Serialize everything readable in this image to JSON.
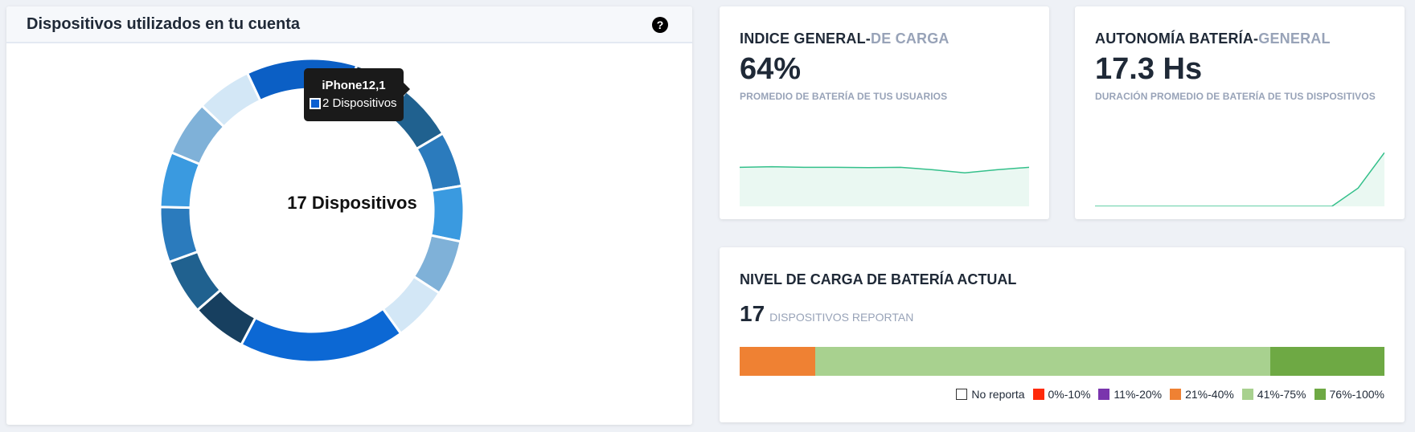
{
  "devices_panel": {
    "title": "Dispositivos utilizados en tu cuenta",
    "help_icon": "?",
    "center_label": "17 Dispositivos",
    "tooltip": {
      "title": "iPhone12,1",
      "value": "2 Dispositivos",
      "swatch_color": "#0b5fd1"
    }
  },
  "chart_data": [
    {
      "type": "pie",
      "title": "",
      "total": 17,
      "slices": [
        {
          "value": 2,
          "color": "#0b5fc5"
        },
        {
          "value": 1,
          "color": "#173f5f"
        },
        {
          "value": 1,
          "color": "#20618f"
        },
        {
          "value": 1,
          "color": "#2b7bbd"
        },
        {
          "value": 1,
          "color": "#3a9ae0"
        },
        {
          "value": 1,
          "color": "#7fb1d8"
        },
        {
          "value": 1,
          "color": "#d3e7f6"
        },
        {
          "value": 3,
          "color": "#0c68d4"
        },
        {
          "value": 1,
          "color": "#173f5f"
        },
        {
          "value": 1,
          "color": "#20618f"
        },
        {
          "value": 1,
          "color": "#2b7bbd"
        },
        {
          "value": 1,
          "color": "#3a9ae0"
        },
        {
          "value": 1,
          "color": "#7fb1d8"
        },
        {
          "value": 1,
          "color": "#d3e7f6"
        }
      ]
    },
    {
      "type": "area",
      "name": "indice-general",
      "values": [
        0.64,
        0.65,
        0.64,
        0.64,
        0.635,
        0.64,
        0.6,
        0.55,
        0.6,
        0.64
      ],
      "ylim": [
        0,
        1
      ],
      "line_color": "#34c08b",
      "fill_color": "#eaf8f2"
    },
    {
      "type": "area",
      "name": "autonomia-bateria",
      "values": [
        0,
        0,
        0,
        0,
        0,
        0,
        0,
        0,
        0,
        0,
        0.3,
        0.88
      ],
      "ylim": [
        0,
        1
      ],
      "line_color": "#34c08b",
      "fill_color": "#eaf8f2"
    },
    {
      "type": "bar",
      "name": "nivel-de-carga-stack",
      "segments": [
        {
          "label": "No reporta",
          "value": 0,
          "color": "#ffffff"
        },
        {
          "label": "0%-10%",
          "value": 0,
          "color": "#ff2a0a"
        },
        {
          "label": "11%-20%",
          "value": 0,
          "color": "#7a35ad"
        },
        {
          "label": "21%-40%",
          "value": 2,
          "color": "#ef8133"
        },
        {
          "label": "41%-75%",
          "value": 12,
          "color": "#a8d18f"
        },
        {
          "label": "76%-100%",
          "value": 3,
          "color": "#6ea944"
        }
      ]
    }
  ],
  "card_index": {
    "title_main": "INDICE GENERAL-",
    "title_muted": "DE CARGA",
    "value": "64%",
    "subtitle": "PROMEDIO DE BATERÍA DE TUS USUARIOS"
  },
  "card_autonomy": {
    "title_main": "AUTONOMÍA BATERÍA-",
    "title_muted": "GENERAL",
    "value": "17.3 Hs",
    "subtitle": "DURACIÓN PROMEDIO DE BATERÍA DE TUS DISPOSITIVOS"
  },
  "card_level": {
    "title": "NIVEL DE CARGA DE BATERÍA ACTUAL",
    "count": "17",
    "count_label": "DISPOSITIVOS REPORTAN"
  }
}
